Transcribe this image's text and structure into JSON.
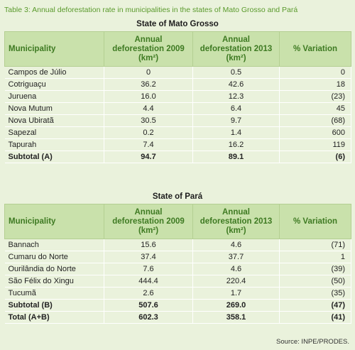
{
  "caption": "Table 3: Annual deforestation rate in municipalities in the states of Mato Grosso and Pará",
  "headers": {
    "municipality": "Municipality",
    "def2009_line1": "Annual",
    "def2009_line2": "deforestation 2009",
    "def2009_line3": "(km²)",
    "def2013_line1": "Annual",
    "def2013_line2": "deforestation 2013",
    "def2013_line3": "(km²)",
    "variation": "% Variation"
  },
  "mato_grosso": {
    "title": "State of Mato Grosso",
    "rows": [
      {
        "name": "Campos de Júlio",
        "d2009": "0",
        "d2013": "0.5",
        "variation": "0"
      },
      {
        "name": "Cotriguaçu",
        "d2009": "36.2",
        "d2013": "42.6",
        "variation": "18"
      },
      {
        "name": "Juruena",
        "d2009": "16.0",
        "d2013": "12.3",
        "variation": "(23)"
      },
      {
        "name": "Nova Mutum",
        "d2009": "4.4",
        "d2013": "6.4",
        "variation": "45"
      },
      {
        "name": "Nova Ubiratã",
        "d2009": "30.5",
        "d2013": "9.7",
        "variation": "(68)"
      },
      {
        "name": "Sapezal",
        "d2009": "0.2",
        "d2013": "1.4",
        "variation": "600"
      },
      {
        "name": "Tapurah",
        "d2009": "7.4",
        "d2013": "16.2",
        "variation": "119"
      }
    ],
    "subtotal": {
      "name": "Subtotal (A)",
      "d2009": "94.7",
      "d2013": "89.1",
      "variation": "(6)"
    }
  },
  "para": {
    "title": "State of Pará",
    "rows": [
      {
        "name": "Bannach",
        "d2009": "15.6",
        "d2013": "4.6",
        "variation": "(71)"
      },
      {
        "name": "Cumaru do Norte",
        "d2009": "37.4",
        "d2013": "37.7",
        "variation": "1"
      },
      {
        "name": "Ourilândia do Norte",
        "d2009": "7.6",
        "d2013": "4.6",
        "variation": "(39)"
      },
      {
        "name": "São Félix do Xingu",
        "d2009": "444.4",
        "d2013": "220.4",
        "variation": "(50)"
      },
      {
        "name": "Tucumã",
        "d2009": "2.6",
        "d2013": "1.7",
        "variation": "(35)"
      }
    ],
    "subtotal": {
      "name": "Subtotal (B)",
      "d2009": "507.6",
      "d2013": "269.0",
      "variation": "(47)"
    },
    "total": {
      "name": "Total (A+B)",
      "d2009": "602.3",
      "d2013": "358.1",
      "variation": "(41)"
    }
  },
  "source": "Source: INPE/PRODES.",
  "colors": {
    "background": "#eaf2dc",
    "header_fill": "#c9e1ab",
    "header_text": "#3e7a22",
    "caption_text": "#5a9a2c"
  }
}
